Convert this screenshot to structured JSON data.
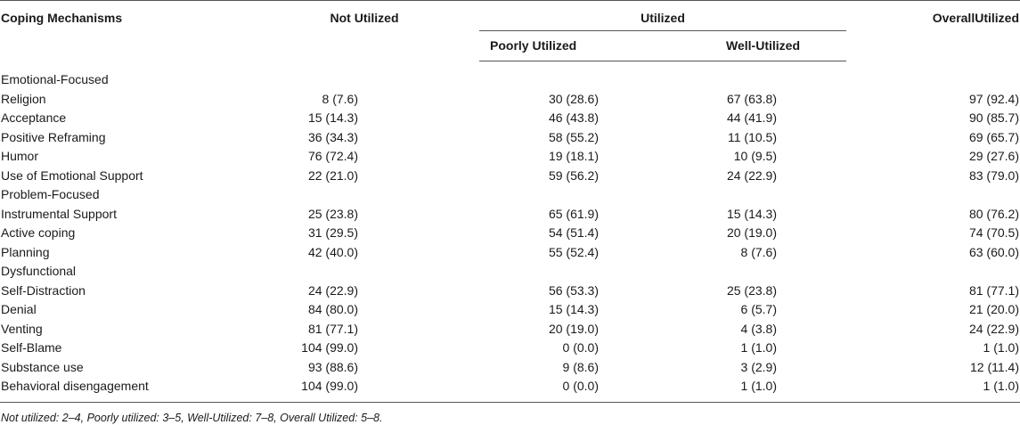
{
  "table": {
    "headers": {
      "coping": "Coping Mechanisms",
      "not_utilized": "Not Utilized",
      "utilized": "Utilized",
      "poorly": "Poorly Utilized",
      "well": "Well-Utilized",
      "overall": "OverallUtilized"
    },
    "rows": [
      {
        "type": "group",
        "label": "Emotional-Focused"
      },
      {
        "type": "data",
        "label": "Religion",
        "not": "8 (7.6)",
        "poor": "30 (28.6)",
        "well": "67 (63.8)",
        "overall": "97 (92.4)"
      },
      {
        "type": "data",
        "label": "Acceptance",
        "not": "15 (14.3)",
        "poor": "46 (43.8)",
        "well": "44 (41.9)",
        "overall": "90 (85.7)"
      },
      {
        "type": "data",
        "label": "Positive Reframing",
        "not": "36 (34.3)",
        "poor": "58 (55.2)",
        "well": "11 (10.5)",
        "overall": "69 (65.7)"
      },
      {
        "type": "data",
        "label": "Humor",
        "not": "76 (72.4)",
        "poor": "19 (18.1)",
        "well": "10 (9.5)",
        "overall": "29 (27.6)"
      },
      {
        "type": "data",
        "label": "Use of Emotional Support",
        "not": "22 (21.0)",
        "poor": "59 (56.2)",
        "well": "24 (22.9)",
        "overall": "83 (79.0)"
      },
      {
        "type": "group",
        "label": "Problem-Focused"
      },
      {
        "type": "data",
        "label": "Instrumental Support",
        "not": "25 (23.8)",
        "poor": "65 (61.9)",
        "well": "15 (14.3)",
        "overall": "80 (76.2)"
      },
      {
        "type": "data",
        "label": "Active coping",
        "not": "31 (29.5)",
        "poor": "54 (51.4)",
        "well": "20 (19.0)",
        "overall": "74 (70.5)"
      },
      {
        "type": "data",
        "label": "Planning",
        "not": "42 (40.0)",
        "poor": "55 (52.4)",
        "well": "8 (7.6)",
        "overall": "63 (60.0)"
      },
      {
        "type": "group",
        "label": "Dysfunctional"
      },
      {
        "type": "data",
        "label": "Self-Distraction",
        "not": "24 (22.9)",
        "poor": "56 (53.3)",
        "well": "25 (23.8)",
        "overall": "81 (77.1)"
      },
      {
        "type": "data",
        "label": "Denial",
        "not": "84 (80.0)",
        "poor": "15 (14.3)",
        "well": "6 (5.7)",
        "overall": "21 (20.0)"
      },
      {
        "type": "data",
        "label": "Venting",
        "not": "81 (77.1)",
        "poor": "20 (19.0)",
        "well": "4 (3.8)",
        "overall": "24 (22.9)"
      },
      {
        "type": "data",
        "label": "Self-Blame",
        "not": "104 (99.0)",
        "poor": "0 (0.0)",
        "well": "1 (1.0)",
        "overall": "1 (1.0)"
      },
      {
        "type": "data",
        "label": "Substance use",
        "not": "93 (88.6)",
        "poor": "9 (8.6)",
        "well": "3 (2.9)",
        "overall": "12 (11.4)"
      },
      {
        "type": "data",
        "label": "Behavioral disengagement",
        "not": "104 (99.0)",
        "poor": "0 (0.0)",
        "well": "1 (1.0)",
        "overall": "1 (1.0)"
      }
    ]
  },
  "footnote": "Not utilized: 2–4, Poorly utilized: 3–5, Well-Utilized: 7–8, Overall Utilized: 5–8."
}
